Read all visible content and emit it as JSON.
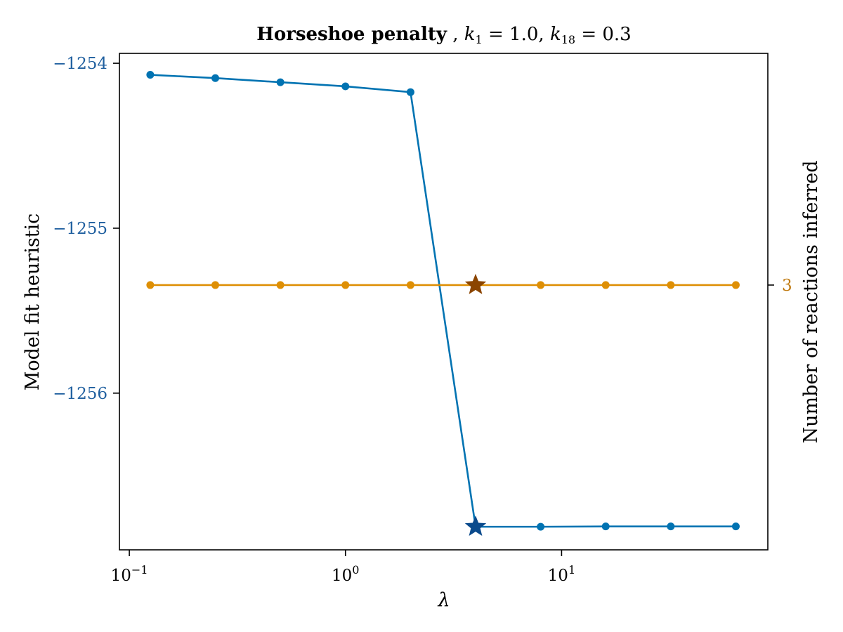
{
  "colors": {
    "model_fit": "#0173b2",
    "model_fit_tick": "#1f5f9f",
    "reactions": "#de8f05",
    "reactions_tick": "#c07a10",
    "star_model_fit": "#0a4a8c",
    "star_reactions": "#8b4500"
  },
  "chart_data": {
    "type": "line",
    "title": {
      "bold": "Horseshoe penalty",
      "rest": ", k₁ = 1.0, k₁₈ = 0.3",
      "parts": [
        {
          "text": "Horseshoe penalty",
          "bold": true
        },
        {
          "text": ", ",
          "italic": false
        },
        {
          "text": "k",
          "italic": true
        },
        {
          "text": "1",
          "sub": true
        },
        {
          "text": " = 1.0, ",
          "italic": false
        },
        {
          "text": "k",
          "italic": true
        },
        {
          "text": "18",
          "sub": true
        },
        {
          "text": " = 0.3",
          "italic": false
        }
      ]
    },
    "xlabel": "λ",
    "ylabel_left": "Model fit heuristic",
    "ylabel_right": "Number of reactions inferred",
    "x_scale": "log10",
    "xlim": [
      0.09,
      90
    ],
    "ylim_left": [
      -1256.95,
      -1253.94
    ],
    "ylim_right": [
      1.4,
      4.4
    ],
    "x_ticks": [
      {
        "value": 0.1,
        "base": "10",
        "exp": "−1"
      },
      {
        "value": 1,
        "base": "10",
        "exp": "0"
      },
      {
        "value": 10,
        "base": "10",
        "exp": "1"
      }
    ],
    "y_ticks_left": [
      {
        "value": -1254,
        "label": "−1254"
      },
      {
        "value": -1255,
        "label": "−1255"
      },
      {
        "value": -1256,
        "label": "−1256"
      }
    ],
    "y_ticks_right": [
      {
        "value": 3,
        "label": "3"
      }
    ],
    "x": [
      0.125,
      0.25,
      0.5,
      1,
      2,
      4,
      8,
      16,
      32,
      64
    ],
    "series": [
      {
        "axis": "left",
        "values": [
          -1254.07,
          -1254.09,
          -1254.115,
          -1254.14,
          -1254.175,
          -1256.81,
          -1256.81,
          -1256.808,
          -1256.808,
          -1256.808
        ],
        "selected_index": 5
      },
      {
        "axis": "right",
        "values": [
          3,
          3,
          3,
          3,
          3,
          3,
          3,
          3,
          3,
          3
        ],
        "selected_index": 5
      }
    ],
    "grid": false,
    "legend": "none"
  }
}
